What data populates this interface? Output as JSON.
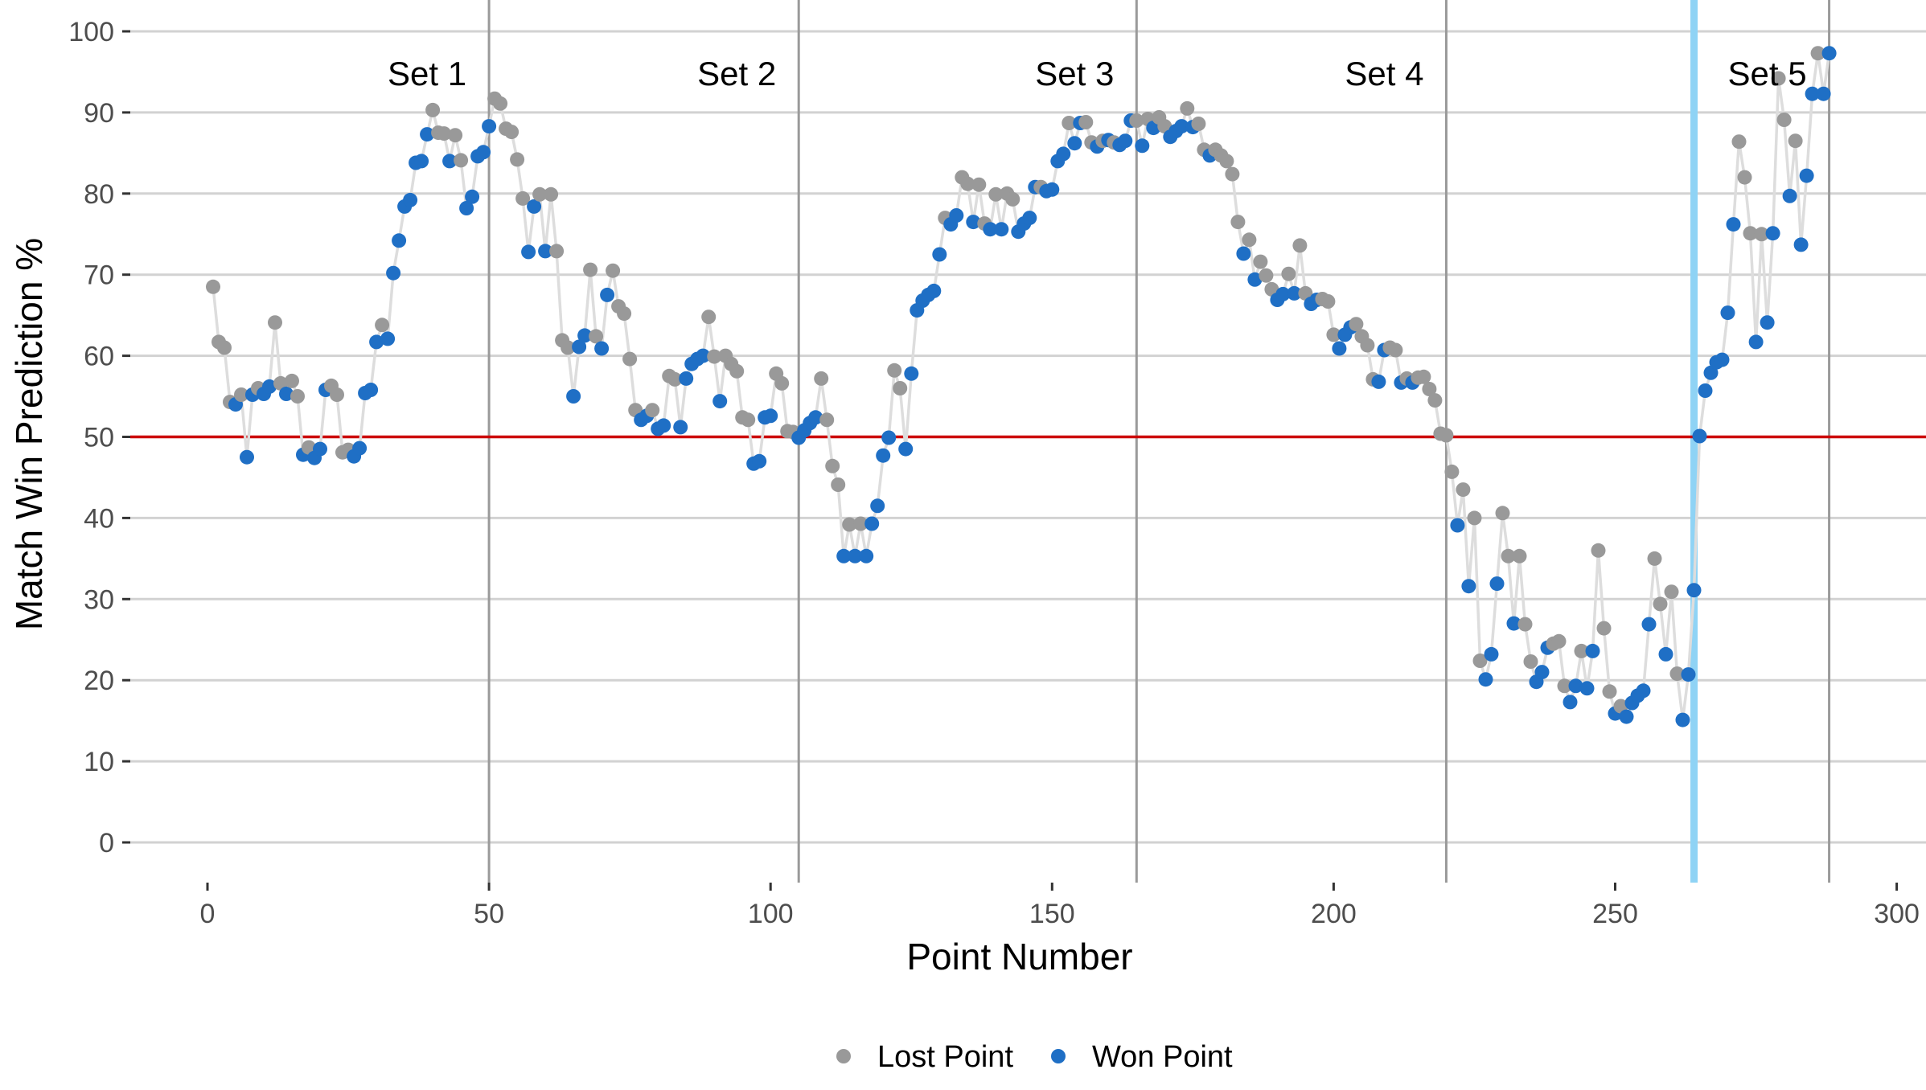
{
  "chart_data": {
    "type": "line+scatter",
    "xlabel": "Point Number",
    "ylabel": "Match Win Prediction %",
    "xlim": [
      -15,
      300
    ],
    "ylim": [
      -3,
      101
    ],
    "x_ticks": [
      0,
      50,
      100,
      150,
      200,
      250,
      300
    ],
    "y_ticks": [
      0,
      10,
      20,
      30,
      40,
      50,
      60,
      70,
      80,
      90,
      100
    ],
    "grid": "horizontal",
    "reference_line": {
      "y": 50,
      "color": "#cc0000"
    },
    "set_boundaries": [
      50,
      105,
      165,
      220,
      288
    ],
    "set_labels": [
      {
        "label": "Set 1",
        "x": 39
      },
      {
        "label": "Set 2",
        "x": 94
      },
      {
        "label": "Set 3",
        "x": 154
      },
      {
        "label": "Set 4",
        "x": 209
      },
      {
        "label": "Set 5",
        "x": 277
      }
    ],
    "highlight_point": {
      "x": 264,
      "color": "#8fd3f5"
    },
    "series": [
      {
        "name": "Lost Point",
        "color": "#999999"
      },
      {
        "name": "Won Point",
        "color": "#1f6fc5"
      }
    ],
    "line_color": "#dddddd",
    "points": [
      [
        1,
        68.5,
        0
      ],
      [
        2,
        61.7,
        0
      ],
      [
        3,
        61,
        0
      ],
      [
        4,
        54.3,
        0
      ],
      [
        5,
        54,
        1
      ],
      [
        6,
        55.2,
        0
      ],
      [
        7,
        47.5,
        1
      ],
      [
        8,
        55.2,
        1
      ],
      [
        9,
        56,
        0
      ],
      [
        10,
        55.3,
        1
      ],
      [
        11,
        56.2,
        1
      ],
      [
        12,
        64.1,
        0
      ],
      [
        13,
        56.6,
        0
      ],
      [
        14,
        55.3,
        1
      ],
      [
        15,
        56.9,
        0
      ],
      [
        16,
        55,
        0
      ],
      [
        17,
        47.8,
        1
      ],
      [
        18,
        48.7,
        0
      ],
      [
        19,
        47.4,
        1
      ],
      [
        20,
        48.5,
        1
      ],
      [
        21,
        55.8,
        1
      ],
      [
        22,
        56.3,
        0
      ],
      [
        23,
        55.2,
        0
      ],
      [
        24,
        48.1,
        0
      ],
      [
        25,
        48.4,
        0
      ],
      [
        26,
        47.6,
        1
      ],
      [
        27,
        48.6,
        1
      ],
      [
        28,
        55.4,
        1
      ],
      [
        29,
        55.8,
        1
      ],
      [
        30,
        61.7,
        1
      ],
      [
        31,
        63.8,
        0
      ],
      [
        32,
        62.1,
        1
      ],
      [
        33,
        70.2,
        1
      ],
      [
        34,
        74.2,
        1
      ],
      [
        35,
        78.4,
        1
      ],
      [
        36,
        79.2,
        1
      ],
      [
        37,
        83.8,
        1
      ],
      [
        38,
        84,
        1
      ],
      [
        39,
        87.3,
        1
      ],
      [
        40,
        90.3,
        0
      ],
      [
        41,
        87.5,
        0
      ],
      [
        42,
        87.4,
        0
      ],
      [
        43,
        84,
        1
      ],
      [
        44,
        87.2,
        0
      ],
      [
        45,
        84.1,
        0
      ],
      [
        46,
        78.2,
        1
      ],
      [
        47,
        79.6,
        1
      ],
      [
        48,
        84.6,
        1
      ],
      [
        49,
        85.1,
        1
      ],
      [
        50,
        88.3,
        1
      ],
      [
        51,
        91.7,
        0
      ],
      [
        52,
        91.1,
        0
      ],
      [
        53,
        88,
        0
      ],
      [
        54,
        87.6,
        0
      ],
      [
        55,
        84.2,
        0
      ],
      [
        56,
        79.4,
        0
      ],
      [
        57,
        72.8,
        1
      ],
      [
        58,
        78.4,
        1
      ],
      [
        59,
        79.9,
        0
      ],
      [
        60,
        72.9,
        1
      ],
      [
        61,
        79.9,
        0
      ],
      [
        62,
        72.9,
        0
      ],
      [
        63,
        61.9,
        0
      ],
      [
        64,
        61,
        0
      ],
      [
        65,
        55,
        1
      ],
      [
        66,
        61.1,
        1
      ],
      [
        67,
        62.5,
        1
      ],
      [
        68,
        70.6,
        0
      ],
      [
        69,
        62.4,
        0
      ],
      [
        70,
        60.9,
        1
      ],
      [
        71,
        67.5,
        1
      ],
      [
        72,
        70.5,
        0
      ],
      [
        73,
        66.1,
        0
      ],
      [
        74,
        65.2,
        0
      ],
      [
        75,
        59.6,
        0
      ],
      [
        76,
        53.3,
        0
      ],
      [
        77,
        52.1,
        1
      ],
      [
        78,
        52.6,
        1
      ],
      [
        79,
        53.3,
        0
      ],
      [
        80,
        51,
        1
      ],
      [
        81,
        51.4,
        1
      ],
      [
        82,
        57.5,
        0
      ],
      [
        83,
        57.1,
        0
      ],
      [
        84,
        51.2,
        1
      ],
      [
        85,
        57.2,
        1
      ],
      [
        86,
        59,
        1
      ],
      [
        87,
        59.6,
        1
      ],
      [
        88,
        60,
        1
      ],
      [
        89,
        64.8,
        0
      ],
      [
        90,
        59.9,
        0
      ],
      [
        91,
        54.4,
        1
      ],
      [
        92,
        60,
        0
      ],
      [
        93,
        59,
        0
      ],
      [
        94,
        58.1,
        0
      ],
      [
        95,
        52.4,
        0
      ],
      [
        96,
        52.1,
        0
      ],
      [
        97,
        46.7,
        1
      ],
      [
        98,
        47,
        1
      ],
      [
        99,
        52.4,
        1
      ],
      [
        100,
        52.6,
        1
      ],
      [
        101,
        57.8,
        0
      ],
      [
        102,
        56.6,
        0
      ],
      [
        103,
        50.7,
        0
      ],
      [
        104,
        50.6,
        0
      ],
      [
        105,
        49.9,
        1
      ],
      [
        106,
        50.8,
        1
      ],
      [
        107,
        51.7,
        1
      ],
      [
        108,
        52.4,
        1
      ],
      [
        109,
        57.2,
        0
      ],
      [
        110,
        52.1,
        0
      ],
      [
        111,
        46.4,
        0
      ],
      [
        112,
        44.1,
        0
      ],
      [
        113,
        35.3,
        1
      ],
      [
        114,
        39.2,
        0
      ],
      [
        115,
        35.3,
        1
      ],
      [
        116,
        39.3,
        0
      ],
      [
        117,
        35.3,
        1
      ],
      [
        118,
        39.3,
        1
      ],
      [
        119,
        41.5,
        1
      ],
      [
        120,
        47.7,
        1
      ],
      [
        121,
        49.9,
        1
      ],
      [
        122,
        58.2,
        0
      ],
      [
        123,
        56,
        0
      ],
      [
        124,
        48.5,
        1
      ],
      [
        125,
        57.8,
        1
      ],
      [
        126,
        65.6,
        1
      ],
      [
        127,
        66.8,
        1
      ],
      [
        128,
        67.5,
        1
      ],
      [
        129,
        68,
        1
      ],
      [
        130,
        72.5,
        1
      ],
      [
        131,
        77,
        0
      ],
      [
        132,
        76.2,
        1
      ],
      [
        133,
        77.3,
        1
      ],
      [
        134,
        82,
        0
      ],
      [
        135,
        81.2,
        0
      ],
      [
        136,
        76.5,
        1
      ],
      [
        137,
        81.1,
        0
      ],
      [
        138,
        76.3,
        0
      ],
      [
        139,
        75.6,
        1
      ],
      [
        140,
        79.9,
        0
      ],
      [
        141,
        75.6,
        1
      ],
      [
        142,
        80,
        0
      ],
      [
        143,
        79.3,
        0
      ],
      [
        144,
        75.3,
        1
      ],
      [
        145,
        76.3,
        1
      ],
      [
        146,
        77,
        1
      ],
      [
        147,
        80.8,
        1
      ],
      [
        148,
        80.8,
        0
      ],
      [
        149,
        80.3,
        1
      ],
      [
        150,
        80.5,
        1
      ],
      [
        151,
        84,
        1
      ],
      [
        152,
        84.9,
        1
      ],
      [
        153,
        88.7,
        0
      ],
      [
        154,
        86.2,
        1
      ],
      [
        155,
        88.7,
        1
      ],
      [
        156,
        88.8,
        0
      ],
      [
        157,
        86.3,
        0
      ],
      [
        158,
        85.8,
        1
      ],
      [
        159,
        86.5,
        0
      ],
      [
        160,
        86.6,
        1
      ],
      [
        161,
        86.3,
        0
      ],
      [
        162,
        86,
        1
      ],
      [
        163,
        86.5,
        1
      ],
      [
        164,
        89,
        1
      ],
      [
        165,
        89,
        0
      ],
      [
        166,
        85.9,
        1
      ],
      [
        167,
        89.2,
        0
      ],
      [
        168,
        88.1,
        1
      ],
      [
        169,
        89.4,
        0
      ],
      [
        170,
        88.3,
        0
      ],
      [
        171,
        87,
        1
      ],
      [
        172,
        87.7,
        1
      ],
      [
        173,
        88.3,
        1
      ],
      [
        174,
        90.5,
        0
      ],
      [
        175,
        88.2,
        1
      ],
      [
        176,
        88.6,
        0
      ],
      [
        177,
        85.4,
        0
      ],
      [
        178,
        84.7,
        1
      ],
      [
        179,
        85.4,
        0
      ],
      [
        180,
        84.7,
        0
      ],
      [
        181,
        84,
        0
      ],
      [
        182,
        82.4,
        0
      ],
      [
        183,
        76.5,
        0
      ],
      [
        184,
        72.6,
        1
      ],
      [
        185,
        74.3,
        0
      ],
      [
        186,
        69.4,
        1
      ],
      [
        187,
        71.6,
        0
      ],
      [
        188,
        69.9,
        0
      ],
      [
        189,
        68.2,
        0
      ],
      [
        190,
        66.9,
        1
      ],
      [
        191,
        67.6,
        1
      ],
      [
        192,
        70.1,
        0
      ],
      [
        193,
        67.7,
        1
      ],
      [
        194,
        73.6,
        0
      ],
      [
        195,
        67.7,
        0
      ],
      [
        196,
        66.4,
        1
      ],
      [
        197,
        66.9,
        1
      ],
      [
        198,
        67,
        0
      ],
      [
        199,
        66.7,
        0
      ],
      [
        200,
        62.6,
        0
      ],
      [
        201,
        60.9,
        1
      ],
      [
        202,
        62.6,
        1
      ],
      [
        203,
        63.5,
        1
      ],
      [
        204,
        63.9,
        0
      ],
      [
        205,
        62.4,
        0
      ],
      [
        206,
        61.3,
        0
      ],
      [
        207,
        57.1,
        0
      ],
      [
        208,
        56.8,
        1
      ],
      [
        209,
        60.7,
        1
      ],
      [
        210,
        61,
        0
      ],
      [
        211,
        60.7,
        0
      ],
      [
        212,
        56.7,
        1
      ],
      [
        213,
        57.2,
        0
      ],
      [
        214,
        56.7,
        1
      ],
      [
        215,
        57.3,
        0
      ],
      [
        216,
        57.4,
        0
      ],
      [
        217,
        55.9,
        0
      ],
      [
        218,
        54.5,
        0
      ],
      [
        219,
        50.4,
        0
      ],
      [
        220,
        50.2,
        0
      ],
      [
        221,
        45.7,
        0
      ],
      [
        222,
        39.1,
        1
      ],
      [
        223,
        43.5,
        0
      ],
      [
        224,
        31.6,
        1
      ],
      [
        225,
        40,
        0
      ],
      [
        226,
        22.4,
        0
      ],
      [
        227,
        20.1,
        1
      ],
      [
        228,
        23.2,
        1
      ],
      [
        229,
        31.9,
        1
      ],
      [
        230,
        40.6,
        0
      ],
      [
        231,
        35.3,
        0
      ],
      [
        232,
        27,
        1
      ],
      [
        233,
        35.3,
        0
      ],
      [
        234,
        26.9,
        0
      ],
      [
        235,
        22.3,
        0
      ],
      [
        236,
        19.8,
        1
      ],
      [
        237,
        21,
        1
      ],
      [
        238,
        24,
        1
      ],
      [
        239,
        24.5,
        0
      ],
      [
        240,
        24.8,
        0
      ],
      [
        241,
        19.3,
        0
      ],
      [
        242,
        17.3,
        1
      ],
      [
        243,
        19.3,
        1
      ],
      [
        244,
        23.6,
        0
      ],
      [
        245,
        19,
        1
      ],
      [
        246,
        23.6,
        1
      ],
      [
        247,
        36,
        0
      ],
      [
        248,
        26.4,
        0
      ],
      [
        249,
        18.6,
        0
      ],
      [
        250,
        15.9,
        1
      ],
      [
        251,
        16.8,
        0
      ],
      [
        252,
        15.5,
        1
      ],
      [
        253,
        17.2,
        1
      ],
      [
        254,
        18.1,
        1
      ],
      [
        255,
        18.7,
        1
      ],
      [
        256,
        26.9,
        1
      ],
      [
        257,
        35,
        0
      ],
      [
        258,
        29.4,
        0
      ],
      [
        259,
        23.2,
        1
      ],
      [
        260,
        30.9,
        0
      ],
      [
        261,
        20.8,
        0
      ],
      [
        262,
        15.1,
        1
      ],
      [
        263,
        20.7,
        1
      ],
      [
        264,
        31.1,
        1
      ],
      [
        265,
        50.1,
        1
      ],
      [
        266,
        55.7,
        1
      ],
      [
        267,
        57.9,
        1
      ],
      [
        268,
        59.2,
        1
      ],
      [
        269,
        59.5,
        1
      ],
      [
        270,
        65.3,
        1
      ],
      [
        271,
        76.2,
        1
      ],
      [
        272,
        86.4,
        0
      ],
      [
        273,
        82,
        0
      ],
      [
        274,
        75.1,
        0
      ],
      [
        275,
        61.7,
        1
      ],
      [
        276,
        75,
        0
      ],
      [
        277,
        64.1,
        1
      ],
      [
        278,
        75.1,
        1
      ],
      [
        279,
        94.2,
        0
      ],
      [
        280,
        89.1,
        0
      ],
      [
        281,
        79.7,
        1
      ],
      [
        282,
        86.5,
        0
      ],
      [
        283,
        73.7,
        1
      ],
      [
        284,
        82.2,
        1
      ],
      [
        285,
        92.3,
        1
      ],
      [
        286,
        97.3,
        0
      ],
      [
        287,
        92.3,
        1
      ],
      [
        288,
        97.3,
        1
      ]
    ]
  }
}
